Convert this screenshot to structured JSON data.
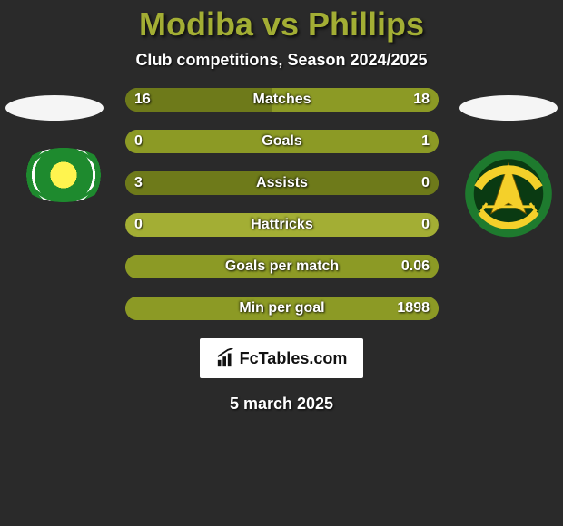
{
  "title": "Modiba vs Phillips",
  "subtitle": "Club competitions, Season 2024/2025",
  "footer_brand": "FcTables.com",
  "date": "5 march 2025",
  "colors": {
    "accent": "#a3ae34",
    "accent_dark": "#6e7a1a",
    "accent_mid": "#8c9a25",
    "bar_track": "#a3ae34",
    "title": "#a3ae34",
    "bg": "#2a2a2a"
  },
  "stats": [
    {
      "label": "Matches",
      "left_value": "16",
      "right_value": "18",
      "left_pct": 47,
      "right_pct": 53,
      "left_color": "#6e7a1a",
      "right_color": "#8c9a25",
      "track_fill": true
    },
    {
      "label": "Goals",
      "left_value": "0",
      "right_value": "1",
      "left_pct": 0,
      "right_pct": 100,
      "left_color": "#6e7a1a",
      "right_color": "#8c9a25",
      "track_fill": false
    },
    {
      "label": "Assists",
      "left_value": "3",
      "right_value": "0",
      "left_pct": 100,
      "right_pct": 0,
      "left_color": "#6e7a1a",
      "right_color": "#8c9a25",
      "track_fill": false
    },
    {
      "label": "Hattricks",
      "left_value": "0",
      "right_value": "0",
      "left_pct": 0,
      "right_pct": 0,
      "left_color": "#6e7a1a",
      "right_color": "#8c9a25",
      "track_fill": false
    },
    {
      "label": "Goals per match",
      "left_value": "",
      "right_value": "0.06",
      "left_pct": 0,
      "right_pct": 100,
      "left_color": "#6e7a1a",
      "right_color": "#8c9a25",
      "track_fill": false
    },
    {
      "label": "Min per goal",
      "left_value": "",
      "right_value": "1898",
      "left_pct": 0,
      "right_pct": 100,
      "left_color": "#6e7a1a",
      "right_color": "#8c9a25",
      "track_fill": false
    }
  ]
}
